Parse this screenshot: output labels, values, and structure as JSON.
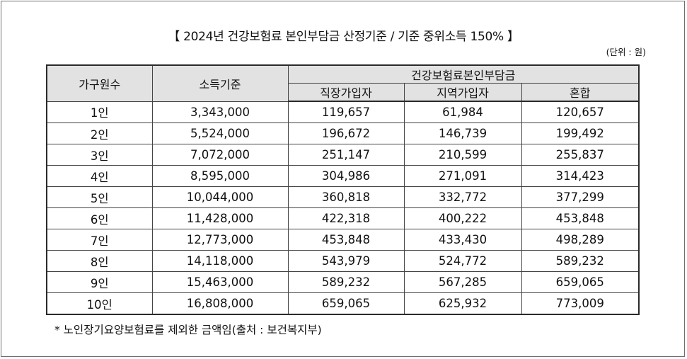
{
  "title": "【  2024년  건강보험료  본인부담금  산정기준  /  기준  중위소득  150%  】",
  "unit": "(단위 : 원)",
  "table": {
    "headers": {
      "household": "가구원수",
      "income": "소득기준",
      "group": "건강보험료본인부담금",
      "employee": "직장가입자",
      "regional": "지역가입자",
      "mixed": "혼합"
    },
    "rows": [
      {
        "household": "1인",
        "income": "3,343,000",
        "employee": "119,657",
        "regional": "61,984",
        "mixed": "120,657"
      },
      {
        "household": "2인",
        "income": "5,524,000",
        "employee": "196,672",
        "regional": "146,739",
        "mixed": "199,492"
      },
      {
        "household": "3인",
        "income": "7,072,000",
        "employee": "251,147",
        "regional": "210,599",
        "mixed": "255,837"
      },
      {
        "household": "4인",
        "income": "8,595,000",
        "employee": "304,986",
        "regional": "271,091",
        "mixed": "314,423"
      },
      {
        "household": "5인",
        "income": "10,044,000",
        "employee": "360,818",
        "regional": "332,772",
        "mixed": "377,299"
      },
      {
        "household": "6인",
        "income": "11,428,000",
        "employee": "422,318",
        "regional": "400,222",
        "mixed": "453,848"
      },
      {
        "household": "7인",
        "income": "12,773,000",
        "employee": "453,848",
        "regional": "433,430",
        "mixed": "498,289"
      },
      {
        "household": "8인",
        "income": "14,118,000",
        "employee": "543,979",
        "regional": "524,772",
        "mixed": "589,232"
      },
      {
        "household": "9인",
        "income": "15,463,000",
        "employee": "589,232",
        "regional": "567,285",
        "mixed": "659,065"
      },
      {
        "household": "10인",
        "income": "16,808,000",
        "employee": "659,065",
        "regional": "625,932",
        "mixed": "773,009"
      }
    ]
  },
  "footnote": "*  노인장기요양보험료를  제외한  금액임(출처 :  보건복지부)"
}
